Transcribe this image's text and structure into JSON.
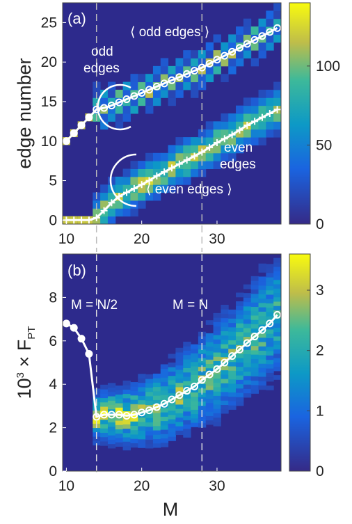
{
  "chart_data": [
    {
      "panel_label": "(a)",
      "type": "heatmap",
      "ylabel": "edge number",
      "xlim": [
        9.5,
        38.5
      ],
      "ylim": [
        -0.5,
        27.5
      ],
      "x_ticks": [
        10,
        20,
        30
      ],
      "y_ticks": [
        0,
        5,
        10,
        15,
        20,
        25
      ],
      "colorbar": {
        "ticks": [
          0,
          50,
          100
        ],
        "tick_labels": [
          "0",
          "50",
          "100"
        ],
        "range": [
          0,
          140
        ]
      },
      "vline_x": [
        14,
        28
      ],
      "annotations": [
        "odd edges",
        "⟨ odd edges ⟩",
        "even edges",
        "⟨ even edges ⟩"
      ],
      "series": [
        {
          "marker": "circle",
          "x": [
            10,
            11,
            12,
            13,
            14,
            15,
            16,
            17,
            18,
            19,
            20,
            21,
            22,
            23,
            24,
            25,
            26,
            27,
            28,
            29,
            30,
            31,
            32,
            33,
            34,
            35,
            36,
            37,
            38
          ],
          "y": [
            10,
            11,
            12,
            13,
            14,
            14.2,
            14.5,
            14.9,
            15.3,
            15.7,
            16.1,
            16.5,
            16.9,
            17.3,
            17.7,
            18.1,
            18.5,
            18.9,
            19.3,
            19.8,
            20.3,
            20.8,
            21.3,
            21.8,
            22.3,
            22.8,
            23.3,
            23.8,
            24.3
          ]
        },
        {
          "marker": "cross",
          "x": [
            10,
            11,
            12,
            13,
            14,
            15,
            16,
            17,
            18,
            19,
            20,
            21,
            22,
            23,
            24,
            25,
            26,
            27,
            28,
            29,
            30,
            31,
            32,
            33,
            34,
            35,
            36,
            37,
            38
          ],
          "y": [
            0,
            0,
            0,
            0,
            0.3,
            1.2,
            2.2,
            3.0,
            3.5,
            4.0,
            4.5,
            5.0,
            5.6,
            6.1,
            6.6,
            7.1,
            7.6,
            8.1,
            8.6,
            9.2,
            9.8,
            10.3,
            10.8,
            11.4,
            12.0,
            12.5,
            13.0,
            13.5,
            14.0
          ]
        }
      ]
    },
    {
      "panel_label": "(b)",
      "type": "heatmap",
      "xlabel": "M",
      "ylabel_parts": [
        "10",
        "3",
        " × F",
        "PT"
      ],
      "xlim": [
        9.5,
        38.5
      ],
      "ylim": [
        0,
        10
      ],
      "x_ticks": [
        10,
        20,
        30
      ],
      "y_ticks": [
        0,
        2,
        4,
        6,
        8
      ],
      "colorbar": {
        "ticks": [
          0,
          1,
          2,
          3
        ],
        "tick_labels": [
          "0",
          "1",
          "2",
          "3"
        ],
        "range": [
          0,
          3.6
        ]
      },
      "vline_x": [
        14,
        28
      ],
      "annotations": [
        "M = N/2",
        "M = N"
      ],
      "series": [
        {
          "marker": "circle",
          "x": [
            10,
            11,
            12,
            13,
            14,
            15,
            16,
            17,
            18,
            19,
            20,
            21,
            22,
            23,
            24,
            25,
            26,
            27,
            28,
            29,
            30,
            31,
            32,
            33,
            34,
            35,
            36,
            37,
            38
          ],
          "y": [
            6.8,
            6.6,
            6.1,
            5.4,
            2.5,
            2.6,
            2.6,
            2.6,
            2.55,
            2.6,
            2.7,
            2.8,
            2.95,
            3.1,
            3.3,
            3.5,
            3.7,
            3.9,
            4.2,
            4.45,
            4.7,
            5.0,
            5.3,
            5.6,
            5.9,
            6.2,
            6.5,
            6.8,
            7.2
          ]
        }
      ]
    }
  ]
}
